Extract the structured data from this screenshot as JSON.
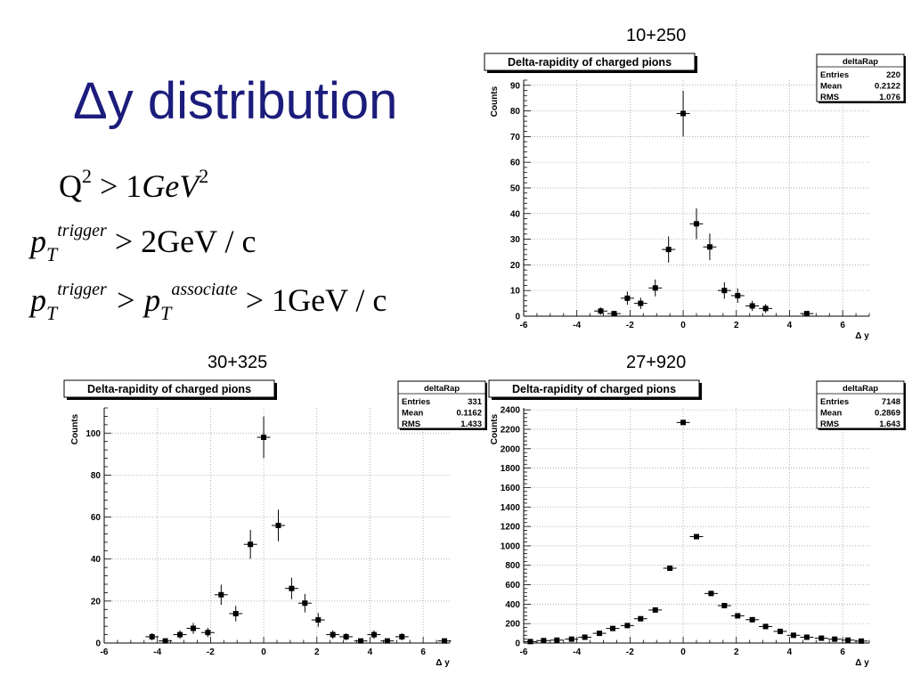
{
  "slide": {
    "title": "Δy distribution",
    "conditions": [
      {
        "lhs": "Q",
        "lhs_sup": "2",
        "rest": " > 1",
        "unit": "GeV",
        "unit_sup": "2"
      },
      {
        "p": "p",
        "sup": "trigger",
        "sub": "T",
        "rest": " > 2GeV / c"
      },
      {
        "p": "p",
        "sup": "trigger",
        "sub": "T",
        "mid": " > p",
        "mid_sup": "associate",
        "mid_sub": "T",
        "rest": " > 1GeV / c"
      }
    ]
  },
  "chart_data": [
    {
      "label": "10+250",
      "type": "scatter",
      "title": "Delta-rapidity of charged pions",
      "xlabel": "Δ y",
      "ylabel": "Counts",
      "xlim": [
        -6,
        7
      ],
      "ylim": [
        0,
        92
      ],
      "xticks": [
        -6,
        -4,
        -2,
        0,
        2,
        4,
        6
      ],
      "yticks": [
        0,
        10,
        20,
        30,
        40,
        50,
        60,
        70,
        80,
        90
      ],
      "grid": true,
      "stats": {
        "name": "deltaRap",
        "rows": [
          [
            "Entries",
            "220"
          ],
          [
            "Mean",
            "0.2122"
          ],
          [
            "RMS",
            "1.076"
          ]
        ]
      },
      "points": [
        {
          "x": -3.1,
          "y": 2,
          "err": 1.4
        },
        {
          "x": -2.6,
          "y": 1,
          "err": 1
        },
        {
          "x": -2.1,
          "y": 7,
          "err": 2.6
        },
        {
          "x": -1.6,
          "y": 5,
          "err": 2.2
        },
        {
          "x": -1.05,
          "y": 11,
          "err": 3.3
        },
        {
          "x": -0.55,
          "y": 26,
          "err": 5.1
        },
        {
          "x": 0,
          "y": 79,
          "err": 8.9
        },
        {
          "x": 0.5,
          "y": 36,
          "err": 6
        },
        {
          "x": 1.0,
          "y": 27,
          "err": 5.2
        },
        {
          "x": 1.55,
          "y": 10,
          "err": 3.2
        },
        {
          "x": 2.05,
          "y": 8,
          "err": 2.8
        },
        {
          "x": 2.6,
          "y": 4,
          "err": 2
        },
        {
          "x": 3.1,
          "y": 3,
          "err": 1.7
        },
        {
          "x": 4.65,
          "y": 1,
          "err": 1
        }
      ]
    },
    {
      "label": "30+325",
      "type": "scatter",
      "title": "Delta-rapidity of charged pions",
      "xlabel": "Δ y",
      "ylabel": "Counts",
      "xlim": [
        -6,
        7
      ],
      "ylim": [
        0,
        112
      ],
      "xticks": [
        -6,
        -4,
        -2,
        0,
        2,
        4,
        6
      ],
      "yticks": [
        0,
        20,
        40,
        60,
        80,
        100
      ],
      "grid": true,
      "stats": {
        "name": "deltaRap",
        "rows": [
          [
            "Entries",
            "331"
          ],
          [
            "Mean",
            "0.1162"
          ],
          [
            "RMS",
            "1.433"
          ]
        ]
      },
      "points": [
        {
          "x": -4.2,
          "y": 3,
          "err": 1.7
        },
        {
          "x": -3.7,
          "y": 1,
          "err": 1
        },
        {
          "x": -3.15,
          "y": 4,
          "err": 2
        },
        {
          "x": -2.65,
          "y": 7,
          "err": 2.6
        },
        {
          "x": -2.1,
          "y": 5,
          "err": 2.2
        },
        {
          "x": -1.6,
          "y": 23,
          "err": 4.8
        },
        {
          "x": -1.05,
          "y": 14,
          "err": 3.7
        },
        {
          "x": -0.5,
          "y": 47,
          "err": 6.9
        },
        {
          "x": 0,
          "y": 98,
          "err": 9.9
        },
        {
          "x": 0.55,
          "y": 56,
          "err": 7.5
        },
        {
          "x": 1.05,
          "y": 26,
          "err": 5.1
        },
        {
          "x": 1.55,
          "y": 19,
          "err": 4.4
        },
        {
          "x": 2.05,
          "y": 11,
          "err": 3.3
        },
        {
          "x": 2.6,
          "y": 4,
          "err": 2
        },
        {
          "x": 3.1,
          "y": 3,
          "err": 1.7
        },
        {
          "x": 3.65,
          "y": 1,
          "err": 1
        },
        {
          "x": 4.15,
          "y": 4,
          "err": 2
        },
        {
          "x": 4.65,
          "y": 1,
          "err": 1
        },
        {
          "x": 5.2,
          "y": 3,
          "err": 1.7
        },
        {
          "x": 6.8,
          "y": 1,
          "err": 1
        }
      ]
    },
    {
      "label": "27+920",
      "type": "scatter",
      "title": "Delta-rapidity of charged pions",
      "xlabel": "Δ y",
      "ylabel": "Counts",
      "xlim": [
        -6,
        7
      ],
      "ylim": [
        0,
        2420
      ],
      "xticks": [
        -6,
        -4,
        -2,
        0,
        2,
        4,
        6
      ],
      "yticks": [
        0,
        200,
        400,
        600,
        800,
        1000,
        1200,
        1400,
        1600,
        1800,
        2000,
        2200,
        2400
      ],
      "grid": true,
      "stats": {
        "name": "deltaRap",
        "rows": [
          [
            "Entries",
            "7148"
          ],
          [
            "Mean",
            "0.2869"
          ],
          [
            "RMS",
            "1.643"
          ]
        ]
      },
      "points": [
        {
          "x": -5.75,
          "y": 15
        },
        {
          "x": -5.25,
          "y": 25
        },
        {
          "x": -4.75,
          "y": 30
        },
        {
          "x": -4.2,
          "y": 40
        },
        {
          "x": -3.7,
          "y": 60
        },
        {
          "x": -3.15,
          "y": 100
        },
        {
          "x": -2.65,
          "y": 150
        },
        {
          "x": -2.1,
          "y": 180
        },
        {
          "x": -1.6,
          "y": 250
        },
        {
          "x": -1.05,
          "y": 340
        },
        {
          "x": -0.5,
          "y": 770
        },
        {
          "x": 0,
          "y": 2270
        },
        {
          "x": 0.5,
          "y": 1095
        },
        {
          "x": 1.05,
          "y": 510
        },
        {
          "x": 1.55,
          "y": 385
        },
        {
          "x": 2.05,
          "y": 280
        },
        {
          "x": 2.6,
          "y": 240
        },
        {
          "x": 3.1,
          "y": 170
        },
        {
          "x": 3.65,
          "y": 120
        },
        {
          "x": 4.15,
          "y": 80
        },
        {
          "x": 4.65,
          "y": 60
        },
        {
          "x": 5.2,
          "y": 50
        },
        {
          "x": 5.7,
          "y": 40
        },
        {
          "x": 6.2,
          "y": 30
        },
        {
          "x": 6.7,
          "y": 20
        }
      ]
    }
  ]
}
